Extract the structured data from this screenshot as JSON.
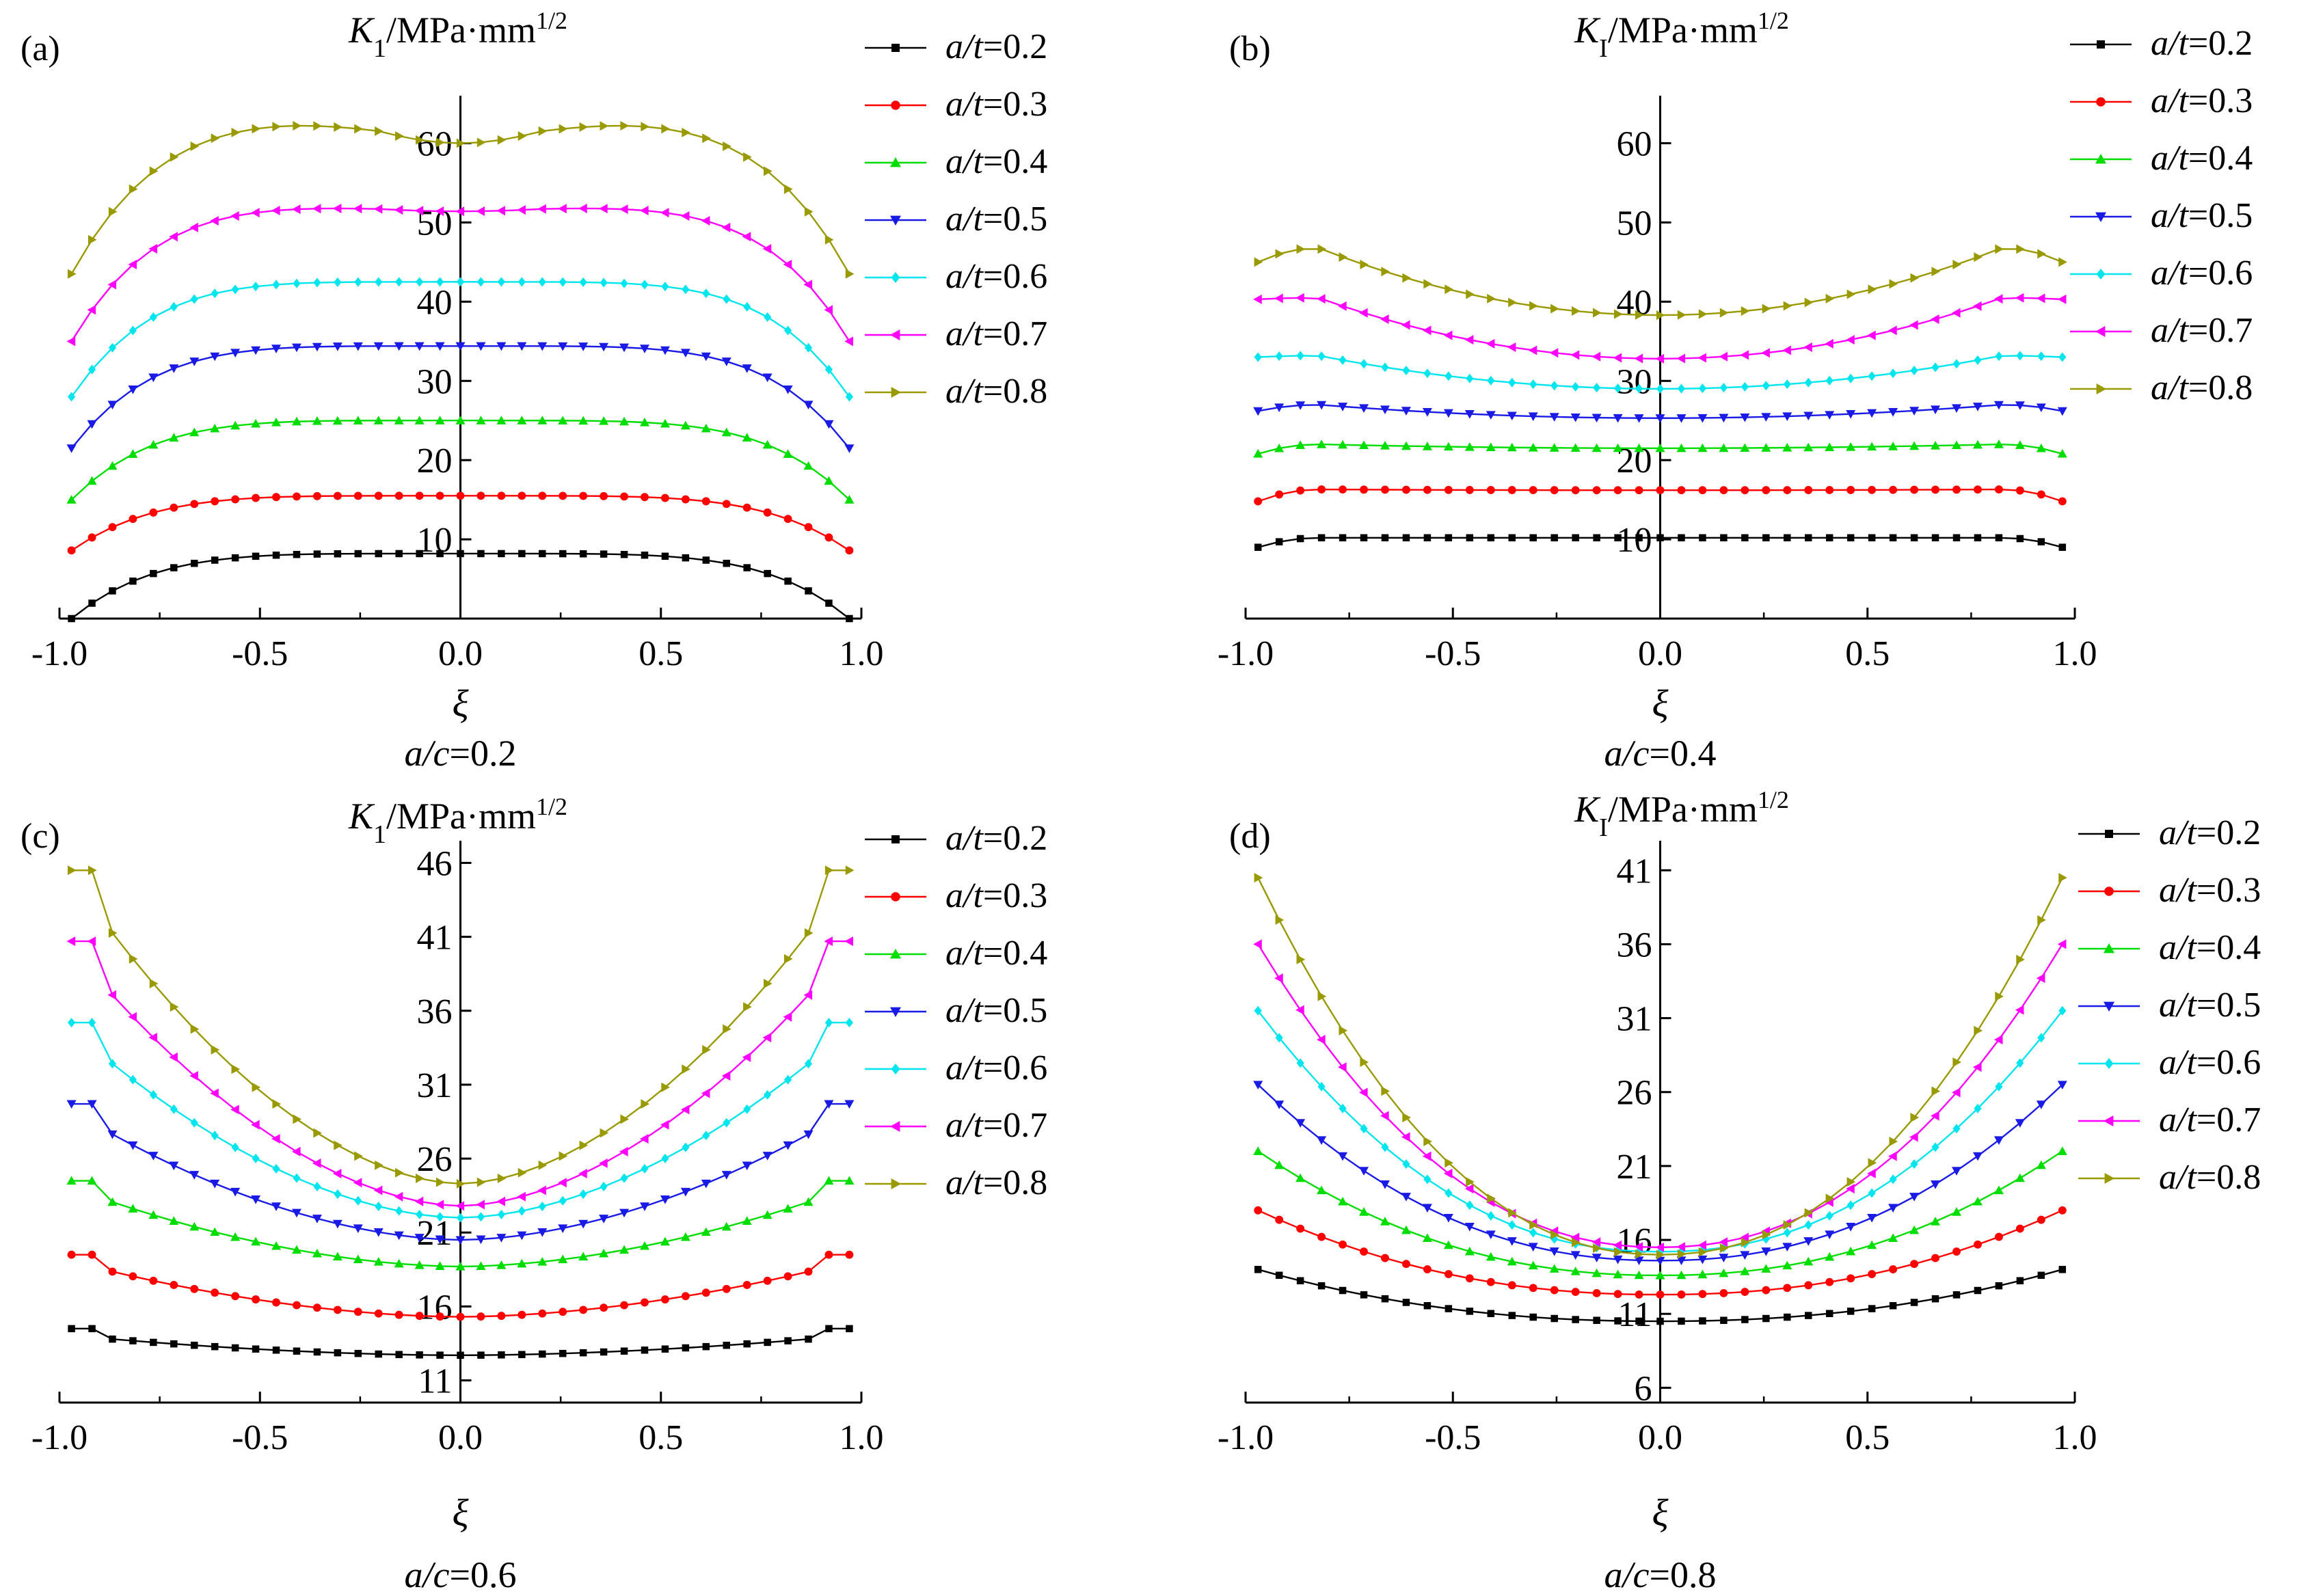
{
  "figure": {
    "x_axis_symbol": "ξ",
    "y_axis_title_a": "K1/MPa·mm1/2",
    "y_axis_title_b": "KI/MPa·mm1/2"
  },
  "colors": [
    "#000000",
    "#ff0000",
    "#00dd00",
    "#1a1ae6",
    "#00e5ee",
    "#ff00ff",
    "#999900"
  ],
  "markers": [
    "square",
    "circle",
    "triangle-up",
    "triangle-down",
    "diamond",
    "triangle-left",
    "triangle-right"
  ],
  "chart_data": [
    {
      "type": "line",
      "panel": "(a)",
      "caption": "a/c=0.2",
      "ylabel_main": "K",
      "ylabel_sub": "1",
      "ylabel_rest": "/MPa·mm",
      "ylabel_sup": "1/2",
      "xlabel": "ξ",
      "xlim": [
        -1.0,
        1.0
      ],
      "ylim": [
        0,
        66
      ],
      "xticks": [
        -1.0,
        -0.5,
        0.0,
        0.5,
        1.0
      ],
      "xtick_labels": [
        "-1.0",
        "-0.5",
        "0.0",
        "0.5",
        "1.0"
      ],
      "yticks": [
        10,
        20,
        30,
        40,
        50,
        60
      ],
      "ytick_labels": [
        "10",
        "20",
        "30",
        "40",
        "50",
        "60"
      ],
      "legend": [
        "a/t=0.2",
        "a/t=0.3",
        "a/t=0.4",
        "a/t=0.5",
        "a/t=0.6",
        "a/t=0.7",
        "a/t=0.8"
      ],
      "curve_params": [
        {
          "edge": 0.0,
          "plateau": 8.2,
          "peak": 0
        },
        {
          "edge": 8.6,
          "plateau": 15.5,
          "peak": 0
        },
        {
          "edge": 15.0,
          "plateau": 25.0,
          "peak": 0
        },
        {
          "edge": 21.5,
          "plateau": 34.4,
          "peak": 0
        },
        {
          "edge": 28.0,
          "plateau": 42.5,
          "peak": 0
        },
        {
          "edge": 35.0,
          "plateau": 51.4,
          "peak": 0.5
        },
        {
          "edge": 43.5,
          "plateau": 60.0,
          "peak": 2.5
        }
      ]
    },
    {
      "type": "line",
      "panel": "(b)",
      "caption": "a/c=0.4",
      "ylabel_main": "K",
      "ylabel_sub": "I",
      "ylabel_rest": "/MPa·mm",
      "ylabel_sup": "1/2",
      "xlabel": "ξ",
      "xlim": [
        -1.0,
        1.0
      ],
      "ylim": [
        0,
        66
      ],
      "xticks": [
        -1.0,
        -0.5,
        0.0,
        0.5,
        1.0
      ],
      "xtick_labels": [
        "-1.0",
        "-0.5",
        "0.0",
        "0.5",
        "1.0"
      ],
      "yticks": [
        10,
        20,
        30,
        40,
        50,
        60
      ],
      "ytick_labels": [
        "10",
        "20",
        "30",
        "40",
        "50",
        "60"
      ],
      "legend": [
        "a/t=0.2",
        "a/t=0.3",
        "a/t=0.4",
        "a/t=0.5",
        "a/t=0.6",
        "a/t=0.7",
        "a/t=0.8"
      ],
      "curve_params": [
        {
          "edge": 9.0,
          "center": 10.2,
          "side": 10.2
        },
        {
          "edge": 14.8,
          "center": 16.2,
          "side": 16.3
        },
        {
          "edge": 20.8,
          "center": 21.5,
          "side": 22.0
        },
        {
          "edge": 26.2,
          "center": 25.3,
          "side": 27.0
        },
        {
          "edge": 33.0,
          "center": 29.0,
          "side": 33.2
        },
        {
          "edge": 40.3,
          "center": 32.8,
          "side": 40.5
        },
        {
          "edge": 45.0,
          "center": 38.3,
          "side": 46.8
        }
      ]
    },
    {
      "type": "line",
      "panel": "(c)",
      "caption": "a/c=0.6",
      "ylabel_main": "K",
      "ylabel_sub": "1",
      "ylabel_rest": "/MPa·mm",
      "ylabel_sup": "1/2",
      "xlabel": "ξ",
      "xlim": [
        -1.0,
        1.0
      ],
      "ylim": [
        9.5,
        47.5
      ],
      "xticks": [
        -1.0,
        -0.5,
        0.0,
        0.5,
        1.0
      ],
      "xtick_labels": [
        "-1.0",
        "-0.5",
        "0.0",
        "0.5",
        "1.0"
      ],
      "yticks": [
        11,
        16,
        21,
        26,
        31,
        36,
        41,
        46
      ],
      "ytick_labels": [
        "11",
        "16",
        "21",
        "26",
        "31",
        "36",
        "41",
        "46"
      ],
      "legend": [
        "a/t=0.2",
        "a/t=0.3",
        "a/t=0.4",
        "a/t=0.5",
        "a/t=0.6",
        "a/t=0.7",
        "a/t=0.8"
      ],
      "curve_params": [
        {
          "edge": 14.5,
          "center": 12.7
        },
        {
          "edge": 19.5,
          "center": 15.3
        },
        {
          "edge": 24.5,
          "center": 18.7
        },
        {
          "edge": 29.7,
          "center": 20.5
        },
        {
          "edge": 35.2,
          "center": 22.0
        },
        {
          "edge": 40.7,
          "center": 22.8
        },
        {
          "edge": 45.5,
          "center": 24.3
        }
      ]
    },
    {
      "type": "line",
      "panel": "(d)",
      "caption": "a/c=0.8",
      "ylabel_main": "K",
      "ylabel_sub": "I",
      "ylabel_rest": "/MPa·mm",
      "ylabel_sup": "1/2",
      "xlabel": "ξ",
      "xlim": [
        -1.0,
        1.0
      ],
      "ylim": [
        5.0,
        43.0
      ],
      "xticks": [
        -1.0,
        -0.5,
        0.0,
        0.5,
        1.0
      ],
      "xtick_labels": [
        "-1.0",
        "-0.5",
        "0.0",
        "0.5",
        "1.0"
      ],
      "yticks": [
        6,
        11,
        16,
        21,
        26,
        31,
        36,
        41
      ],
      "ytick_labels": [
        "6",
        "11",
        "16",
        "21",
        "26",
        "31",
        "36",
        "41"
      ],
      "legend": [
        "a/t=0.2",
        "a/t=0.3",
        "a/t=0.4",
        "a/t=0.5",
        "a/t=0.6",
        "a/t=0.7",
        "a/t=0.8"
      ],
      "curve_params": [
        {
          "edge": 14.0,
          "center": 10.5
        },
        {
          "edge": 18.0,
          "center": 12.3
        },
        {
          "edge": 22.0,
          "center": 13.6
        },
        {
          "edge": 26.5,
          "center": 14.6
        },
        {
          "edge": 31.5,
          "center": 15.2
        },
        {
          "edge": 36.0,
          "center": 15.5
        },
        {
          "edge": 40.5,
          "center": 15.0
        }
      ]
    }
  ]
}
